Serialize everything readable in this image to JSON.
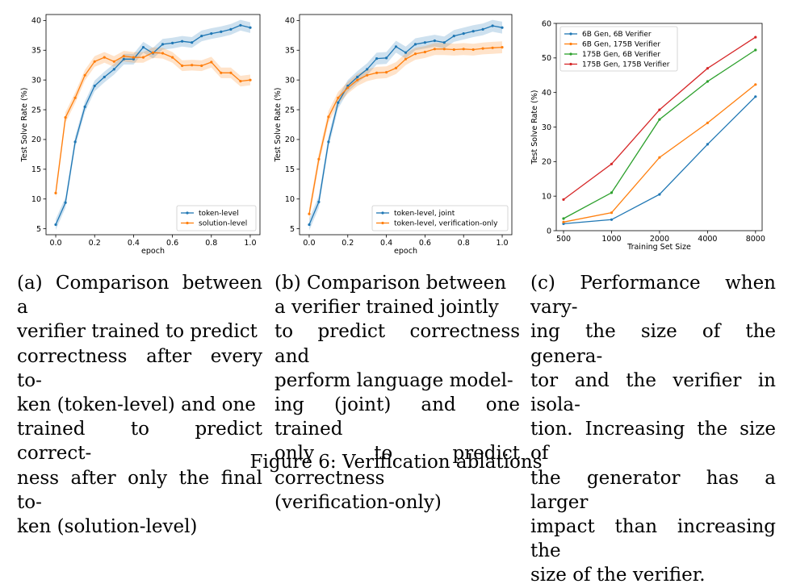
{
  "figure_caption": "Figure 6: Verification ablations",
  "subcaptions": {
    "a": [
      "(a) Comparison between a",
      "verifier trained to predict",
      "correctness after every to-",
      "ken (token-level) and one",
      "trained to predict correct-",
      "ness after only the final to-",
      "ken (solution-level)"
    ],
    "b": [
      "(b)  Comparison  between",
      "a verifier trained jointly",
      "to predict correctness and",
      "perform language model-",
      "ing (joint) and one trained",
      "only to predict correctness",
      "(verification-only)"
    ],
    "c": [
      "(c) Performance when vary-",
      "ing the size of the genera-",
      "tor and the verifier in isola-",
      "tion. Increasing the size of",
      "the generator has a larger",
      "impact than increasing the",
      "size of the verifier."
    ]
  },
  "colors": {
    "blue": "#1f77b4",
    "orange": "#ff7f0e",
    "green": "#2ca02c",
    "red": "#d62728"
  },
  "chart_data": [
    {
      "type": "line",
      "id": "a",
      "xlabel": "epoch",
      "ylabel": "Test Solve Rate (%)",
      "xlim": [
        -0.05,
        1.05
      ],
      "ylim": [
        4,
        41
      ],
      "xticks": [
        0.0,
        0.2,
        0.4,
        0.6,
        0.8,
        1.0
      ],
      "xtick_labels": [
        "0.0",
        "0.2",
        "0.4",
        "0.6",
        "0.8",
        "1.0"
      ],
      "yticks": [
        5,
        10,
        15,
        20,
        25,
        30,
        35,
        40
      ],
      "ytick_labels": [
        "5",
        "10",
        "15",
        "20",
        "25",
        "30",
        "35",
        "40"
      ],
      "legend_position": "lower-right",
      "band_halfwidth": 0.9,
      "x": [
        0.0,
        0.05,
        0.1,
        0.15,
        0.2,
        0.25,
        0.3,
        0.35,
        0.4,
        0.45,
        0.5,
        0.55,
        0.6,
        0.65,
        0.7,
        0.75,
        0.8,
        0.85,
        0.9,
        0.95,
        1.0
      ],
      "series": [
        {
          "name": "token-level",
          "color": "#1f77b4",
          "values": [
            5.7,
            9.4,
            19.6,
            25.5,
            29.0,
            30.5,
            31.8,
            33.5,
            33.5,
            35.5,
            34.5,
            36.0,
            36.2,
            36.5,
            36.3,
            37.4,
            37.8,
            38.1,
            38.5,
            39.2,
            38.8
          ]
        },
        {
          "name": "solution-level",
          "color": "#ff7f0e",
          "values": [
            11.0,
            23.7,
            27.0,
            30.8,
            33.1,
            33.8,
            33.1,
            34.0,
            33.8,
            33.8,
            34.6,
            34.5,
            33.8,
            32.4,
            32.5,
            32.4,
            33.0,
            31.2,
            31.2,
            29.8,
            30.0
          ]
        }
      ]
    },
    {
      "type": "line",
      "id": "b",
      "xlabel": "epoch",
      "ylabel": "Test Solve Rate (%)",
      "xlim": [
        -0.05,
        1.05
      ],
      "ylim": [
        4,
        41
      ],
      "xticks": [
        0.0,
        0.2,
        0.4,
        0.6,
        0.8,
        1.0
      ],
      "xtick_labels": [
        "0.0",
        "0.2",
        "0.4",
        "0.6",
        "0.8",
        "1.0"
      ],
      "yticks": [
        5,
        10,
        15,
        20,
        25,
        30,
        35,
        40
      ],
      "ytick_labels": [
        "5",
        "10",
        "15",
        "20",
        "25",
        "30",
        "35",
        "40"
      ],
      "legend_position": "lower-right",
      "band_halfwidth": 1.0,
      "x": [
        0.0,
        0.05,
        0.1,
        0.15,
        0.2,
        0.25,
        0.3,
        0.35,
        0.4,
        0.45,
        0.5,
        0.55,
        0.6,
        0.65,
        0.7,
        0.75,
        0.8,
        0.85,
        0.9,
        0.95,
        1.0
      ],
      "series": [
        {
          "name": "token-level, joint",
          "color": "#1f77b4",
          "values": [
            5.7,
            9.5,
            19.6,
            26.2,
            29.0,
            30.5,
            31.8,
            33.6,
            33.7,
            35.6,
            34.6,
            36.0,
            36.3,
            36.6,
            36.3,
            37.4,
            37.8,
            38.2,
            38.5,
            39.1,
            38.8
          ]
        },
        {
          "name": "token-level, verification-only",
          "color": "#ff7f0e",
          "values": [
            7.5,
            16.7,
            23.8,
            27.0,
            28.7,
            30.0,
            30.8,
            31.2,
            31.3,
            32.0,
            33.5,
            34.4,
            34.7,
            35.2,
            35.2,
            35.1,
            35.2,
            35.1,
            35.3,
            35.4,
            35.5
          ]
        }
      ]
    },
    {
      "type": "line",
      "id": "c",
      "xlabel": "Training Set Size",
      "ylabel": "Test Solve Rate (%)",
      "xscale": "log",
      "xlim": [
        450,
        8800
      ],
      "ylim": [
        0,
        60
      ],
      "xticks": [
        500,
        1000,
        2000,
        4000,
        8000
      ],
      "xtick_labels": [
        "500",
        "1000",
        "2000",
        "4000",
        "8000"
      ],
      "yticks": [
        0,
        10,
        20,
        30,
        40,
        50,
        60
      ],
      "ytick_labels": [
        "0",
        "10",
        "20",
        "30",
        "40",
        "50",
        "60"
      ],
      "legend_position": "upper-left",
      "x": [
        500,
        1000,
        2000,
        4000,
        8000
      ],
      "series": [
        {
          "name": "6B Gen, 6B Verifier",
          "color": "#1f77b4",
          "values": [
            2.0,
            3.2,
            10.5,
            25.0,
            38.8
          ]
        },
        {
          "name": "6B Gen, 175B Verifier",
          "color": "#ff7f0e",
          "values": [
            2.5,
            5.2,
            21.2,
            31.2,
            42.3
          ]
        },
        {
          "name": "175B Gen, 6B Verifier",
          "color": "#2ca02c",
          "values": [
            3.5,
            11.0,
            32.2,
            43.2,
            52.3
          ]
        },
        {
          "name": "175B Gen, 175B Verifier",
          "color": "#d62728",
          "values": [
            9.0,
            19.3,
            35.0,
            47.0,
            56.0
          ]
        }
      ]
    }
  ]
}
